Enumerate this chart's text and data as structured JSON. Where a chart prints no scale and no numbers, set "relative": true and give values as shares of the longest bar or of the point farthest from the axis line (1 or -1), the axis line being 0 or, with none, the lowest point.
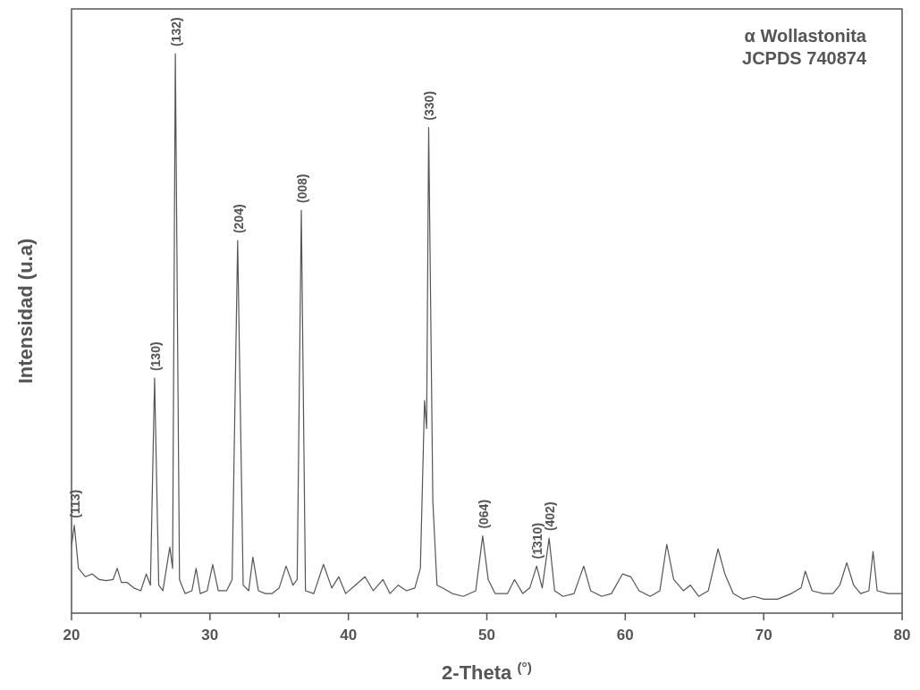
{
  "chart_data": {
    "type": "line",
    "relative": true,
    "xlabel": "2-Theta $^{(°)}$",
    "ylabel": "Intensidad (u.a)",
    "xlim": [
      20,
      80
    ],
    "xticks": [
      20,
      {
        "value": 25,
        "label": null
      },
      30,
      {
        "value": 35,
        "label": null
      },
      40,
      {
        "value": 45,
        "label": null
      },
      50,
      {
        "value": 55,
        "label": null
      },
      60,
      {
        "value": 65,
        "label": null
      },
      70,
      {
        "value": 75,
        "label": null
      },
      80
    ],
    "tick_labels": "x",
    "grid": false,
    "marker": "none",
    "line_style": "solid",
    "annotations": [
      "α Wollastonita\nJCPDS 740874",
      {
        "text": "(113)",
        "x": 20.2,
        "y": 0.157
      },
      {
        "text": "(130)",
        "x": 26.0,
        "y": 0.42
      },
      {
        "text": "(132)",
        "x": 27.5,
        "y": 1.0
      },
      {
        "text": "(204)",
        "x": 32.0,
        "y": 0.666
      },
      {
        "text": "(008)",
        "x": 36.6,
        "y": 0.72
      },
      {
        "text": "(330)",
        "x": 45.8,
        "y": 0.868
      },
      {
        "text": "(064)",
        "x": 49.7,
        "y": 0.138
      },
      {
        "text": "(1̄310)",
        "x": 53.6,
        "y": 0.084
      },
      {
        "text": "(402)",
        "x": 54.5,
        "y": 0.134
      }
    ],
    "series": [
      {
        "color": "#555555",
        "x": [
          20.0,
          20.2,
          20.5,
          21,
          21.5,
          22,
          22.5,
          23,
          23.3,
          23.6,
          24,
          24.5,
          25,
          25.4,
          25.7,
          26.0,
          26.3,
          26.6,
          27.1,
          27.3,
          27.5,
          27.8,
          28.2,
          28.7,
          29.0,
          29.3,
          29.8,
          30.2,
          30.6,
          31.2,
          31.6,
          32.0,
          32.4,
          32.8,
          33.1,
          33.5,
          34,
          34.5,
          35,
          35.5,
          36,
          36.3,
          36.6,
          36.9,
          37.5,
          38.2,
          38.8,
          39.3,
          39.8,
          40.5,
          41.2,
          41.8,
          42.5,
          43,
          43.6,
          44.2,
          44.8,
          45.2,
          45.5,
          45.65,
          45.8,
          46.1,
          46.4,
          46.8,
          47.5,
          48.3,
          49.2,
          49.7,
          50.1,
          50.6,
          51.5,
          52.0,
          52.6,
          53.1,
          53.6,
          54.0,
          54.5,
          54.9,
          55.5,
          56.3,
          57.0,
          57.5,
          58.3,
          59.0,
          59.8,
          60.4,
          61,
          61.8,
          62.5,
          63.0,
          63.5,
          64.2,
          64.7,
          65.3,
          66,
          66.7,
          67.2,
          67.8,
          68.5,
          69.3,
          70,
          71,
          72,
          72.7,
          73.0,
          73.5,
          74.3,
          75,
          75.5,
          76.0,
          76.5,
          77,
          77.6,
          77.9,
          78.2,
          79,
          80
        ],
        "values": [
          0.12,
          0.157,
          0.08,
          0.065,
          0.07,
          0.06,
          0.058,
          0.06,
          0.08,
          0.055,
          0.055,
          0.045,
          0.04,
          0.07,
          0.05,
          0.42,
          0.05,
          0.04,
          0.118,
          0.08,
          1.0,
          0.06,
          0.035,
          0.04,
          0.08,
          0.035,
          0.04,
          0.087,
          0.04,
          0.04,
          0.06,
          0.666,
          0.05,
          0.04,
          0.1,
          0.04,
          0.035,
          0.035,
          0.045,
          0.084,
          0.05,
          0.06,
          0.72,
          0.04,
          0.035,
          0.087,
          0.045,
          0.065,
          0.035,
          0.05,
          0.065,
          0.04,
          0.06,
          0.035,
          0.05,
          0.04,
          0.045,
          0.08,
          0.38,
          0.33,
          0.868,
          0.2,
          0.05,
          0.045,
          0.035,
          0.03,
          0.04,
          0.138,
          0.06,
          0.035,
          0.035,
          0.06,
          0.035,
          0.045,
          0.084,
          0.045,
          0.134,
          0.04,
          0.03,
          0.035,
          0.084,
          0.04,
          0.03,
          0.035,
          0.07,
          0.065,
          0.04,
          0.03,
          0.04,
          0.123,
          0.06,
          0.04,
          0.05,
          0.03,
          0.04,
          0.115,
          0.07,
          0.035,
          0.025,
          0.03,
          0.025,
          0.025,
          0.035,
          0.045,
          0.075,
          0.04,
          0.035,
          0.035,
          0.05,
          0.09,
          0.05,
          0.035,
          0.04,
          0.11,
          0.04,
          0.035,
          0.035
        ]
      }
    ]
  }
}
